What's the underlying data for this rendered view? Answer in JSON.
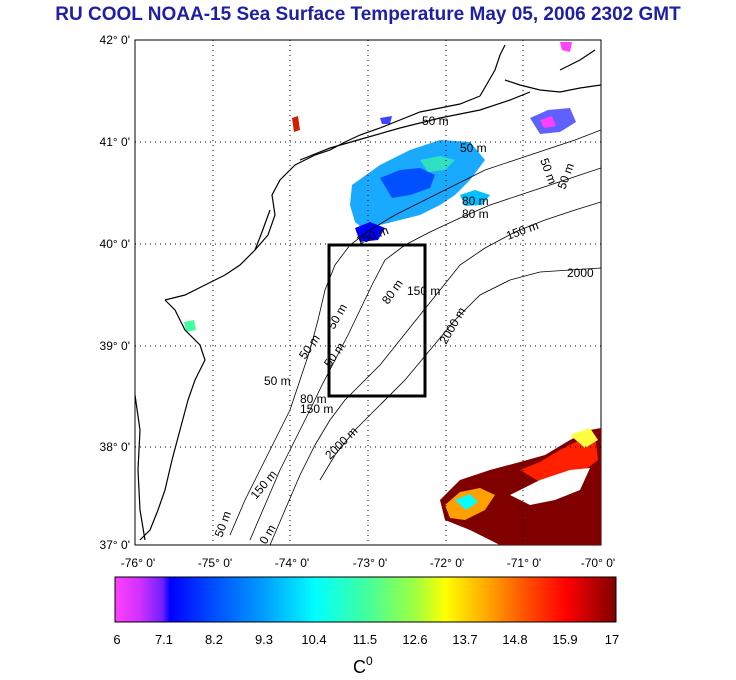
{
  "title": "RU COOL  NOAA-15 Sea Surface Temperature May 05, 2006 2302 GMT",
  "map": {
    "lat_labels": [
      "42° 0'",
      "41° 0'",
      "40° 0'",
      "39° 0'",
      "38° 0'",
      "37° 0'"
    ],
    "lon_labels": [
      "-76° 0'",
      "-75° 0'",
      "-74° 0'",
      "-73° 0'",
      "-72° 0'",
      "-71° 0'",
      "-70° 0'"
    ],
    "lat_range": [
      37,
      42
    ],
    "lon_range": [
      -76,
      -70
    ],
    "contour_labels": [
      {
        "id": "c1",
        "text": "50 m"
      },
      {
        "id": "c2",
        "text": "50 m"
      },
      {
        "id": "c3",
        "text": "50 m"
      },
      {
        "id": "c4",
        "text": "50 m"
      },
      {
        "id": "c5",
        "text": "80 m"
      },
      {
        "id": "c6",
        "text": "80 m"
      },
      {
        "id": "c7",
        "text": "150 m"
      },
      {
        "id": "c8",
        "text": "150 m"
      },
      {
        "id": "c9",
        "text": "2000"
      },
      {
        "id": "c10",
        "text": "150 m"
      },
      {
        "id": "c11",
        "text": "80 m"
      },
      {
        "id": "c12",
        "text": "2000 m"
      },
      {
        "id": "c13",
        "text": "50 m"
      },
      {
        "id": "c14",
        "text": "50 m"
      },
      {
        "id": "c15",
        "text": "50 m"
      },
      {
        "id": "c16",
        "text": "50 m"
      },
      {
        "id": "c17",
        "text": "80 m"
      },
      {
        "id": "c18",
        "text": "150 m"
      },
      {
        "id": "c19",
        "text": "2000 m"
      },
      {
        "id": "c20",
        "text": "150 m"
      },
      {
        "id": "c21",
        "text": "50 m"
      },
      {
        "id": "c22",
        "text": "0 m"
      }
    ],
    "study_box": {
      "lat": [
        38.5,
        40.0
      ],
      "lon": [
        -73.5,
        -72.3
      ]
    }
  },
  "colorbar": {
    "ticks": [
      "6",
      "7.1",
      "8.2",
      "9.3",
      "10.4",
      "11.5",
      "12.6",
      "13.7",
      "14.8",
      "15.9",
      "17"
    ],
    "range": [
      6,
      17
    ],
    "unit_label": "C",
    "unit_sup": "0",
    "colors": {
      "magenta": "#ff40ff",
      "purple": "#7a20ff",
      "blue": "#0000ff",
      "cyan": "#00ffff",
      "green": "#40ff80",
      "yellow": "#ffff00",
      "orange": "#ff8000",
      "red": "#ff0000",
      "dark_red": "#800000"
    }
  }
}
